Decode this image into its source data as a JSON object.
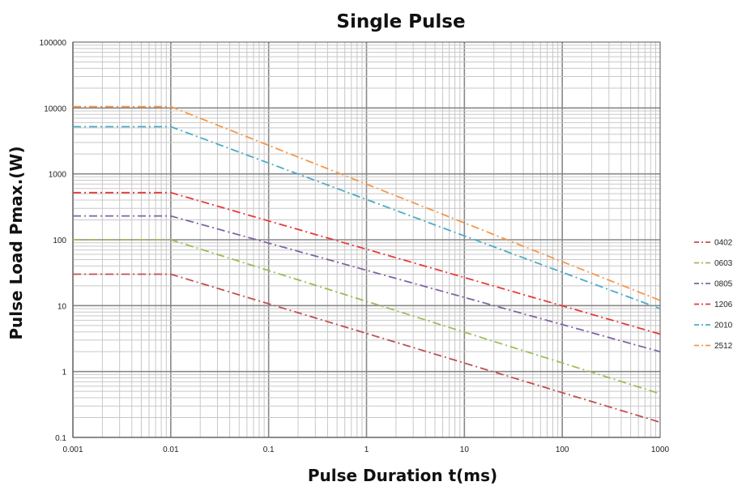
{
  "chart_data": {
    "type": "line",
    "title": "Single Pulse",
    "xlabel": "Pulse Duration  t(ms)",
    "ylabel": "Pulse Load  Pmax.(W)",
    "x_scale": "log",
    "y_scale": "log",
    "xlim": [
      0.001,
      1000
    ],
    "ylim": [
      0.1,
      100000
    ],
    "x_ticks": [
      "0.001",
      "0.01",
      "0.1",
      "1",
      "10",
      "100",
      "1000"
    ],
    "y_ticks": [
      "0.1",
      "1",
      "10",
      "100",
      "1000",
      "10000",
      "100000"
    ],
    "grid": true,
    "legend_position": "right",
    "series": [
      {
        "name": "0402",
        "color": "#c0504d",
        "points": [
          [
            0.001,
            30
          ],
          [
            0.01,
            30
          ],
          [
            1000,
            0.17
          ]
        ]
      },
      {
        "name": "0603",
        "color": "#9bbb59",
        "points": [
          [
            0.001,
            100
          ],
          [
            0.01,
            100
          ],
          [
            1000,
            0.46
          ]
        ]
      },
      {
        "name": "0805",
        "color": "#8064a2",
        "points": [
          [
            0.001,
            230
          ],
          [
            0.01,
            230
          ],
          [
            1000,
            2.0
          ]
        ]
      },
      {
        "name": "1206",
        "color": "#e8393a",
        "points": [
          [
            0.001,
            520
          ],
          [
            0.01,
            520
          ],
          [
            1000,
            3.7
          ]
        ]
      },
      {
        "name": "2010",
        "color": "#4bacc6",
        "points": [
          [
            0.001,
            5200
          ],
          [
            0.01,
            5200
          ],
          [
            1000,
            9.0
          ]
        ]
      },
      {
        "name": "2512",
        "color": "#f79646",
        "points": [
          [
            0.001,
            10500
          ],
          [
            0.01,
            10500
          ],
          [
            1000,
            12
          ]
        ]
      }
    ]
  }
}
